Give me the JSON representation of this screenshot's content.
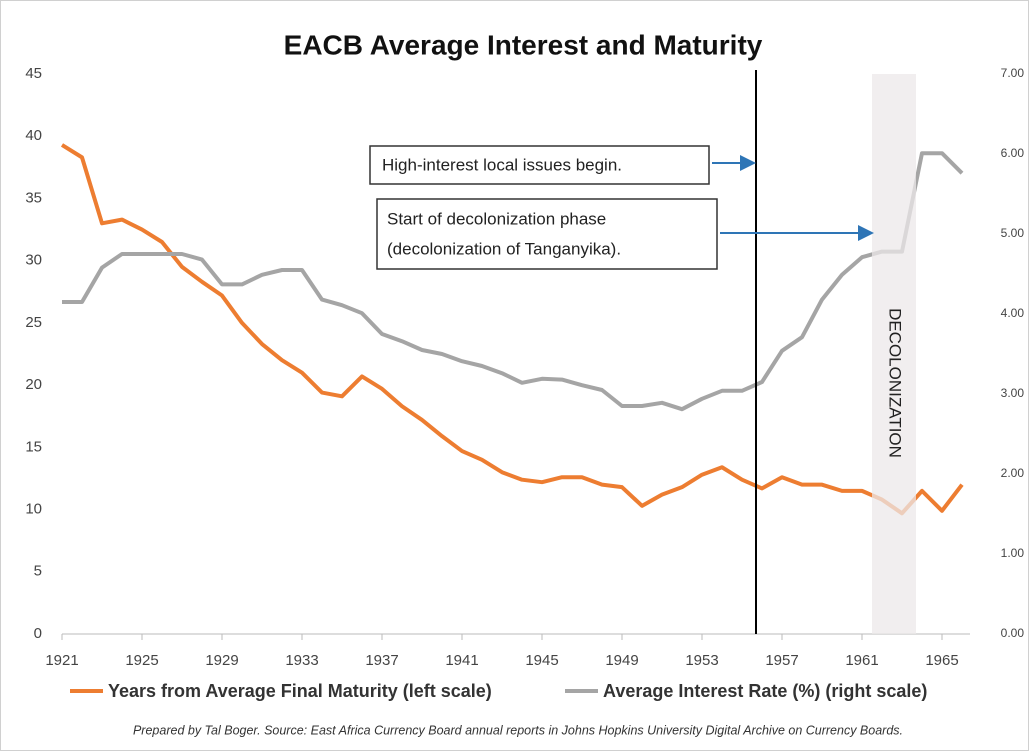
{
  "chart_data": {
    "type": "line",
    "title": "EACB Average Interest and Maturity",
    "x": [
      1921,
      1922,
      1923,
      1924,
      1925,
      1926,
      1927,
      1928,
      1929,
      1930,
      1931,
      1932,
      1933,
      1934,
      1935,
      1936,
      1937,
      1938,
      1939,
      1940,
      1941,
      1942,
      1943,
      1944,
      1945,
      1946,
      1947,
      1948,
      1949,
      1950,
      1951,
      1952,
      1953,
      1954,
      1955,
      1956,
      1957,
      1958,
      1959,
      1960,
      1961,
      1962,
      1963,
      1964,
      1965,
      1966
    ],
    "series": [
      {
        "name": "Years from Average Final Maturity (left scale)",
        "color": "#ed7d31",
        "axis": "y",
        "values": [
          39.3,
          38.3,
          33.0,
          33.3,
          32.5,
          31.5,
          29.5,
          28.3,
          27.2,
          25.0,
          23.3,
          22.0,
          21.0,
          19.4,
          19.1,
          20.7,
          19.7,
          18.3,
          17.2,
          15.9,
          14.7,
          14.0,
          13.0,
          12.4,
          12.2,
          12.6,
          12.6,
          12.0,
          11.8,
          10.3,
          11.2,
          11.8,
          12.8,
          13.4,
          12.4,
          11.7,
          12.6,
          12.0,
          12.0,
          11.5,
          11.5,
          10.8,
          9.7,
          11.5,
          9.9,
          12.0
        ]
      },
      {
        "name": "Average Interest Rate (%) (right scale)",
        "color": "#a5a5a5",
        "axis": "y2",
        "values": [
          4.15,
          4.15,
          4.58,
          4.75,
          4.75,
          4.75,
          4.75,
          4.68,
          4.37,
          4.37,
          4.49,
          4.55,
          4.55,
          4.18,
          4.11,
          4.01,
          3.75,
          3.66,
          3.55,
          3.5,
          3.41,
          3.35,
          3.26,
          3.14,
          3.19,
          3.18,
          3.11,
          3.05,
          2.85,
          2.85,
          2.89,
          2.81,
          2.94,
          3.04,
          3.04,
          3.15,
          3.54,
          3.71,
          4.18,
          4.49,
          4.71,
          4.78,
          4.78,
          6.01,
          6.01,
          5.76
        ]
      }
    ],
    "xlim": [
      1921,
      1966
    ],
    "xticks": [
      1921,
      1925,
      1929,
      1933,
      1937,
      1941,
      1945,
      1949,
      1953,
      1957,
      1961,
      1965
    ],
    "ylim": [
      0,
      45
    ],
    "yticks": [
      0,
      5,
      10,
      15,
      20,
      25,
      30,
      35,
      40,
      45
    ],
    "y2lim": [
      0,
      7
    ],
    "y2ticks": [
      {
        "value": 0,
        "label": "0.00"
      },
      {
        "value": 1,
        "label": "1.00"
      },
      {
        "value": 2,
        "label": "2.00"
      },
      {
        "value": 3,
        "label": "3.00"
      },
      {
        "value": 4,
        "label": "4.00"
      },
      {
        "value": 5,
        "label": "5.00"
      },
      {
        "value": 6,
        "label": "6.00"
      },
      {
        "value": 7,
        "label": "7.00"
      }
    ],
    "vline_x": 1955.7,
    "shade": [
      1961.5,
      1963.7
    ],
    "shade_label": "DECOLONIZATION",
    "annotations": [
      "High-interest local issues begin.",
      "Start of decolonization phase",
      "(decolonization of Tanganyika)."
    ],
    "legend": "bottom",
    "source": "Prepared by Tal Boger. Source: East Africa Currency Board annual reports in Johns Hopkins University Digital Archive on Currency Boards."
  }
}
